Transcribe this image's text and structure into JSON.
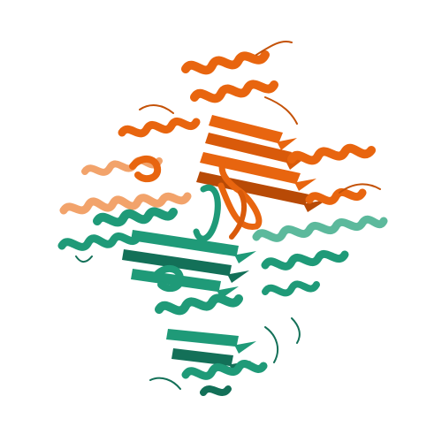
{
  "image": {
    "subject": "protein-ribbon-structure",
    "background_color": "#ffffff"
  },
  "chains": [
    {
      "name": "chain-orange",
      "color": "#e8650f",
      "shade_color": "#b84a06",
      "light_color": "#f2a36b"
    },
    {
      "name": "chain-green",
      "color": "#1f9a78",
      "shade_color": "#137058",
      "light_color": "#5cb99c"
    }
  ]
}
